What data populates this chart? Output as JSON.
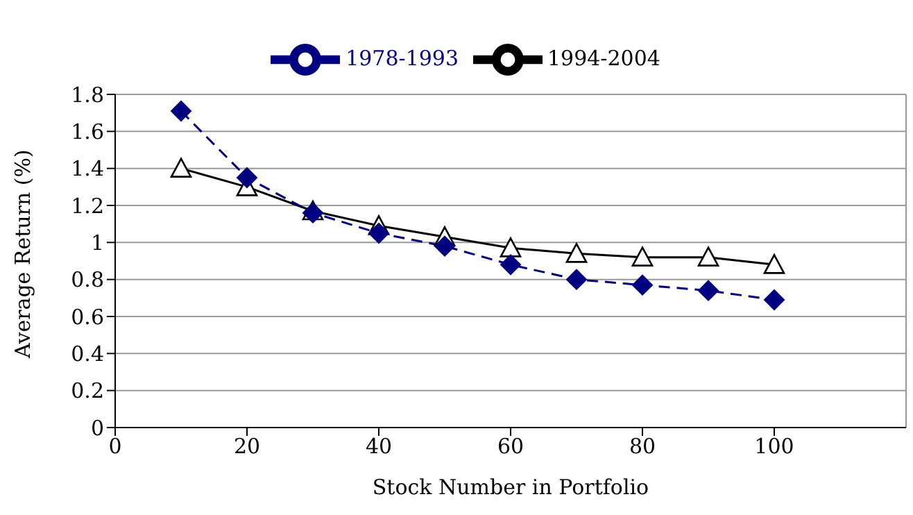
{
  "chart_data": {
    "type": "line",
    "xlabel": "Stock Number in Portfolio",
    "ylabel": "Average Return (%)",
    "x": [
      10,
      20,
      30,
      40,
      50,
      60,
      70,
      80,
      90,
      100
    ],
    "series": [
      {
        "name": "1978-1993",
        "color": "#000080",
        "values": [
          1.71,
          1.35,
          1.16,
          1.05,
          0.98,
          0.88,
          0.8,
          0.77,
          0.74,
          0.69
        ],
        "marker": "diamond",
        "line_style": "dashed"
      },
      {
        "name": "1994-2004",
        "color": "#000000",
        "values": [
          1.4,
          1.3,
          1.17,
          1.09,
          1.03,
          0.97,
          0.94,
          0.92,
          0.92,
          0.88
        ],
        "marker": "triangle",
        "line_style": "solid"
      }
    ],
    "xlim": [
      0,
      120
    ],
    "xticks": [
      0,
      20,
      40,
      60,
      80,
      100
    ],
    "ylim": [
      0,
      1.8
    ],
    "yticks": [
      0,
      0.2,
      0.4,
      0.6,
      0.8,
      1,
      1.2,
      1.4,
      1.6,
      1.8
    ],
    "grid": "y",
    "legend": "top"
  }
}
